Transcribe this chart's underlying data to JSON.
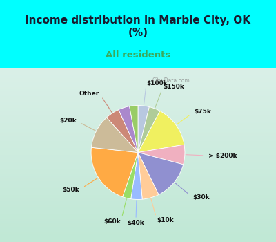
{
  "title": "Income distribution in Marble City, OK\n(%)",
  "subtitle": "All residents",
  "title_color": "#1a1a2e",
  "subtitle_color": "#3aaa5c",
  "bg_top": "#00ffff",
  "bg_chart_top": "#e8f5f0",
  "bg_chart_bot": "#c8e8d8",
  "watermark": "City-Data.com",
  "slices": [
    {
      "label": "$100k",
      "value": 4,
      "color": "#b8c8e0",
      "disp": "$100k"
    },
    {
      "label": "$150k",
      "value": 4,
      "color": "#b0cc99",
      "disp": "$150k"
    },
    {
      "label": "$75k",
      "value": 15,
      "color": "#f0f060",
      "disp": "$75k"
    },
    {
      "label": "> $200k",
      "value": 7,
      "color": "#f0b0c0",
      "disp": "> $200k"
    },
    {
      "label": "$30k",
      "value": 14,
      "color": "#9090d0",
      "disp": "$30k"
    },
    {
      "label": "$10k",
      "value": 6,
      "color": "#ffcc99",
      "disp": "$10k"
    },
    {
      "label": "$40k",
      "value": 4,
      "color": "#99bbff",
      "disp": "$40k"
    },
    {
      "label": "$60k",
      "value": 3,
      "color": "#99dd66",
      "disp": "$60k"
    },
    {
      "label": "$50k",
      "value": 22,
      "color": "#ffaa44",
      "disp": "$50k"
    },
    {
      "label": "$20k",
      "value": 12,
      "color": "#ccbb99",
      "disp": "$20k"
    },
    {
      "label": "Other-r",
      "value": 5,
      "color": "#cc8877",
      "disp": "Other"
    },
    {
      "label": "Other-p",
      "value": 4,
      "color": "#aa88cc",
      "disp": ""
    },
    {
      "label": "Other-g",
      "value": 3,
      "color": "#99cc66",
      "disp": ""
    }
  ],
  "label_angles": {
    "$100k": 85,
    "$150k": 60,
    "$75k": 35,
    "> $200k": 5,
    "$30k": -30,
    "$10k": -60,
    "$40k": -85,
    "$60k": -100,
    "$50k": -145,
    "$20k": 160,
    "Other-r": 120,
    "Other-p": 100,
    "Other-g": 95
  }
}
